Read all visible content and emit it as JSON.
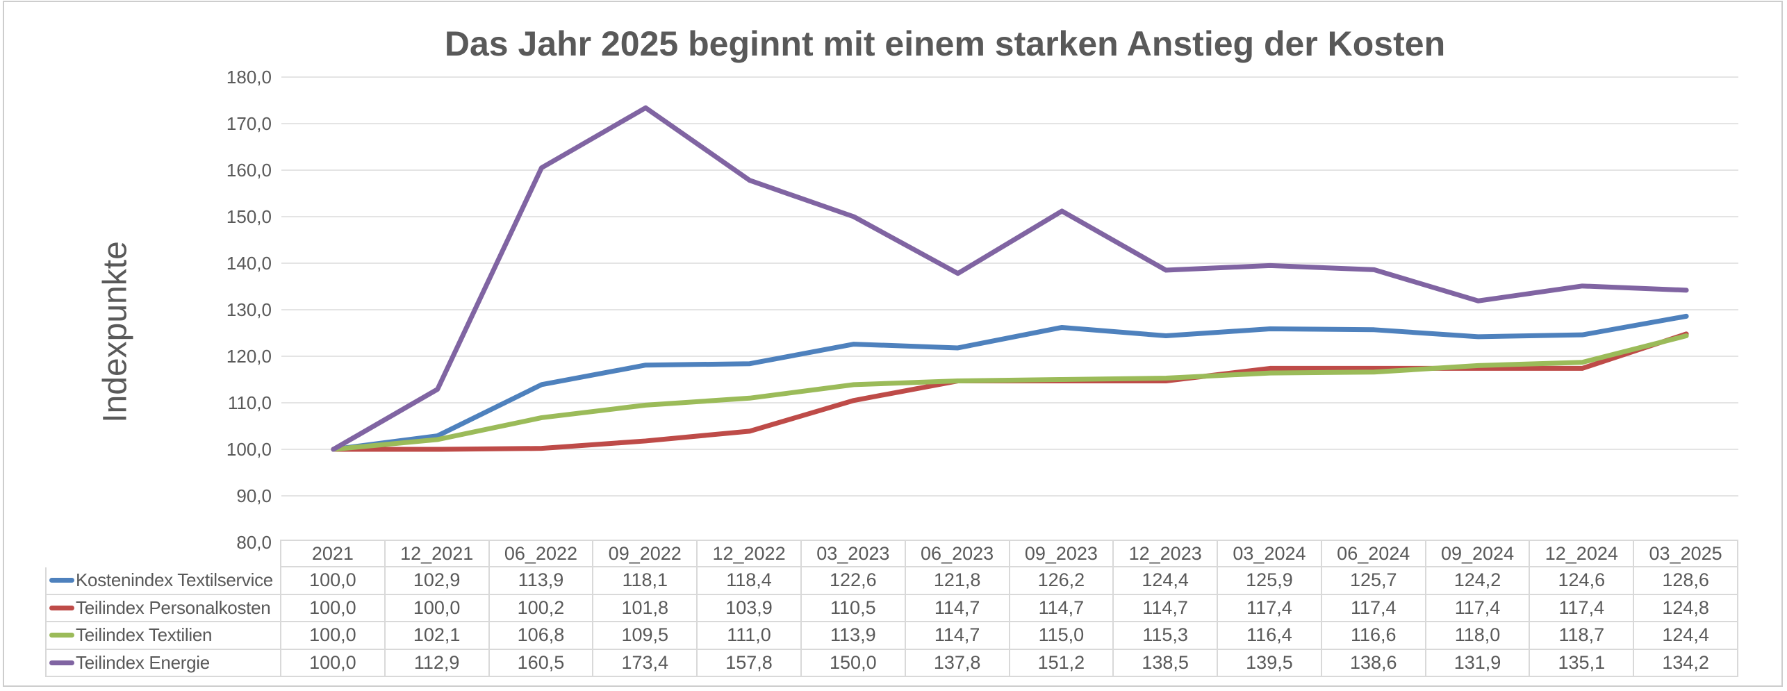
{
  "chart_data": {
    "type": "line",
    "title": "Das Jahr 2025 beginnt mit einem starken Anstieg der Kosten",
    "ylabel": "Indexpunkte",
    "ylim": [
      80,
      180
    ],
    "ytick_step": 10,
    "decimal_separator": ",",
    "grid": "horizontal",
    "legend_position": "data-table-left-column",
    "categories": [
      "2021",
      "12_2021",
      "06_2022",
      "09_2022",
      "12_2022",
      "03_2023",
      "06_2023",
      "09_2023",
      "12_2023",
      "03_2024",
      "06_2024",
      "09_2024",
      "12_2024",
      "03_2025"
    ],
    "series": [
      {
        "name": "Kostenindex Textilservice",
        "color": "#4E81BD",
        "values": [
          100.0,
          102.9,
          113.9,
          118.1,
          118.4,
          122.6,
          121.8,
          126.2,
          124.4,
          125.9,
          125.7,
          124.2,
          124.6,
          128.6
        ]
      },
      {
        "name": "Teilindex Personalkosten",
        "color": "#BE4B48",
        "values": [
          100.0,
          100.0,
          100.2,
          101.8,
          103.9,
          110.5,
          114.7,
          114.7,
          114.7,
          117.4,
          117.4,
          117.4,
          117.4,
          124.8
        ]
      },
      {
        "name": "Teilindex Textilien",
        "color": "#9BBB59",
        "values": [
          100.0,
          102.1,
          106.8,
          109.5,
          111.0,
          113.9,
          114.7,
          115.0,
          115.3,
          116.4,
          116.6,
          118.0,
          118.7,
          124.4
        ]
      },
      {
        "name": "Teilindex Energie",
        "color": "#8064A2",
        "values": [
          100.0,
          112.9,
          160.5,
          173.4,
          157.8,
          150.0,
          137.8,
          151.2,
          138.5,
          139.5,
          138.6,
          131.9,
          135.1,
          134.2
        ]
      }
    ]
  },
  "colors": {
    "title_text": "#595959",
    "axis_text": "#595959",
    "table_text": "#595959",
    "gridline": "#e4e4e4",
    "table_border": "#d9d9d9",
    "chart_border": "#cdcdcd",
    "background": "#ffffff"
  }
}
